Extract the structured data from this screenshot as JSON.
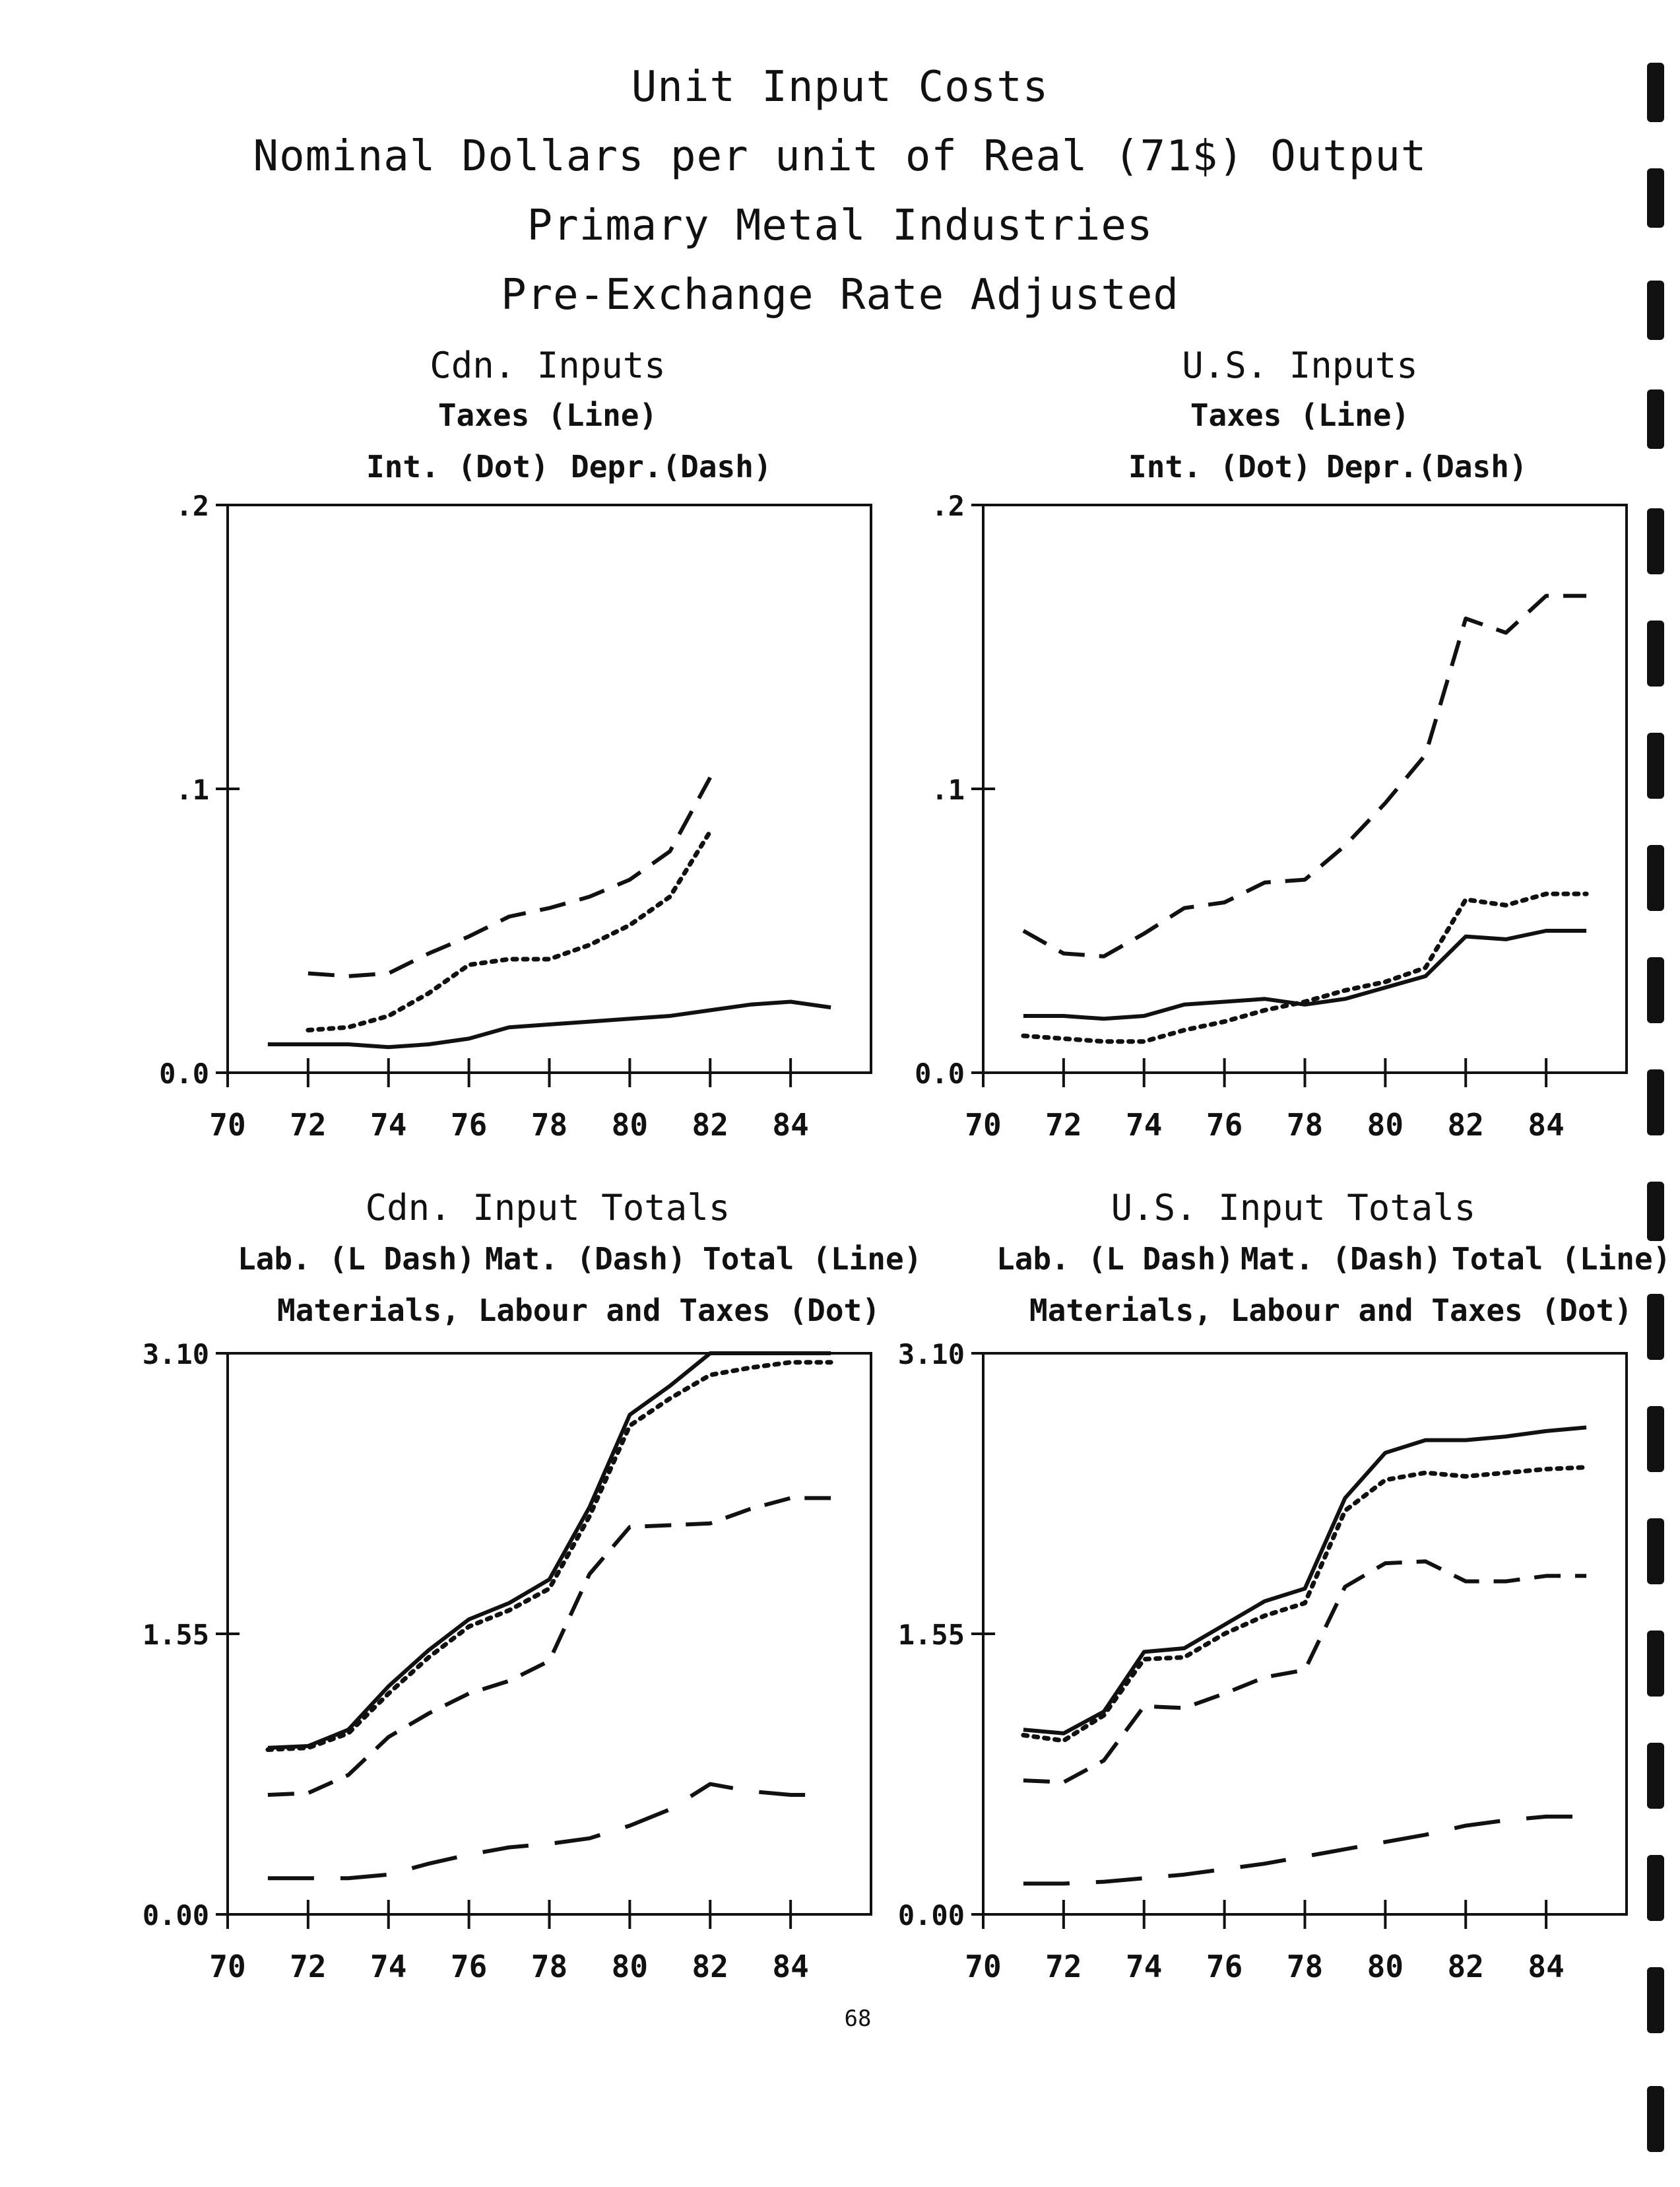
{
  "page": {
    "title_lines": [
      "Unit Input Costs",
      "Nominal Dollars per unit of Real (71$) Output",
      "Primary Metal Industries",
      "Pre-Exchange Rate Adjusted"
    ],
    "page_number": "68"
  },
  "chart_data": [
    {
      "type": "line",
      "title": "Cdn. Inputs",
      "subtitle": "Taxes (Line)",
      "legend_left": "Int. (Dot)",
      "legend_right": "Depr.(Dash)",
      "xlim": [
        70,
        86
      ],
      "ylim": [
        0,
        0.2
      ],
      "x_ticks": [
        70,
        72,
        74,
        76,
        78,
        80,
        82,
        84
      ],
      "y_ticks": [
        0,
        0.1,
        0.2
      ],
      "y_tick_labels": [
        "0.0",
        ".1",
        ".2"
      ],
      "series": [
        {
          "name": "Taxes",
          "style": "solid",
          "x": [
            71,
            72,
            73,
            74,
            75,
            76,
            77,
            78,
            79,
            80,
            81,
            82,
            83,
            84,
            85
          ],
          "y": [
            0.01,
            0.01,
            0.01,
            0.009,
            0.01,
            0.012,
            0.016,
            0.017,
            0.018,
            0.019,
            0.02,
            0.022,
            0.024,
            0.025,
            0.023
          ]
        },
        {
          "name": "Int.",
          "style": "dot",
          "x": [
            72,
            73,
            74,
            75,
            76,
            77,
            78,
            79,
            80,
            81,
            82
          ],
          "y": [
            0.015,
            0.016,
            0.02,
            0.028,
            0.038,
            0.04,
            0.04,
            0.045,
            0.052,
            0.062,
            0.085
          ]
        },
        {
          "name": "Depr.",
          "style": "dash",
          "x": [
            72,
            73,
            74,
            75,
            76,
            77,
            78,
            79,
            80,
            81,
            82
          ],
          "y": [
            0.035,
            0.034,
            0.035,
            0.042,
            0.048,
            0.055,
            0.058,
            0.062,
            0.068,
            0.078,
            0.104
          ]
        }
      ]
    },
    {
      "type": "line",
      "title": "U.S. Inputs",
      "subtitle": "Taxes (Line)",
      "legend_left": "Int. (Dot)",
      "legend_right": "Depr.(Dash)",
      "xlim": [
        70,
        86
      ],
      "ylim": [
        0,
        0.2
      ],
      "x_ticks": [
        70,
        72,
        74,
        76,
        78,
        80,
        82,
        84
      ],
      "y_ticks": [
        0,
        0.1,
        0.2
      ],
      "y_tick_labels": [
        "0.0",
        ".1",
        ".2"
      ],
      "series": [
        {
          "name": "Taxes",
          "style": "solid",
          "x": [
            71,
            72,
            73,
            74,
            75,
            76,
            77,
            78,
            79,
            80,
            81,
            82,
            83,
            84,
            85
          ],
          "y": [
            0.02,
            0.02,
            0.019,
            0.02,
            0.024,
            0.025,
            0.026,
            0.024,
            0.026,
            0.03,
            0.034,
            0.048,
            0.047,
            0.05,
            0.05
          ]
        },
        {
          "name": "Int.",
          "style": "dot",
          "x": [
            71,
            72,
            73,
            74,
            75,
            76,
            77,
            78,
            79,
            80,
            81,
            82,
            83,
            84,
            85
          ],
          "y": [
            0.013,
            0.012,
            0.011,
            0.011,
            0.015,
            0.018,
            0.022,
            0.025,
            0.029,
            0.032,
            0.037,
            0.061,
            0.059,
            0.063,
            0.063
          ]
        },
        {
          "name": "Depr.",
          "style": "dash",
          "x": [
            71,
            72,
            73,
            74,
            75,
            76,
            77,
            78,
            79,
            80,
            81,
            82,
            83,
            84,
            85
          ],
          "y": [
            0.05,
            0.042,
            0.041,
            0.049,
            0.058,
            0.06,
            0.067,
            0.068,
            0.08,
            0.095,
            0.112,
            0.16,
            0.155,
            0.168,
            0.168
          ]
        }
      ]
    },
    {
      "type": "line",
      "title": "Cdn. Input Totals",
      "legend_items": [
        "Lab. (L Dash)",
        "Mat. (Dash)",
        "Total (Line)"
      ],
      "subtitle": "Materials, Labour and Taxes (Dot)",
      "xlim": [
        70,
        86
      ],
      "ylim": [
        0,
        3.1
      ],
      "x_ticks": [
        70,
        72,
        74,
        76,
        78,
        80,
        82,
        84
      ],
      "y_ticks": [
        0,
        1.55,
        3.1
      ],
      "y_tick_labels": [
        "0.00",
        "1.55",
        "3.10"
      ],
      "series": [
        {
          "name": "Total",
          "style": "solid",
          "x": [
            71,
            72,
            73,
            74,
            75,
            76,
            77,
            78,
            79,
            80,
            81,
            82,
            83,
            84,
            85
          ],
          "y": [
            0.92,
            0.93,
            1.02,
            1.26,
            1.46,
            1.63,
            1.72,
            1.85,
            2.25,
            2.76,
            2.92,
            3.1,
            3.1,
            3.1,
            3.1
          ]
        },
        {
          "name": "Materials, Labour and Taxes",
          "style": "dot",
          "x": [
            71,
            72,
            73,
            74,
            75,
            76,
            77,
            78,
            79,
            80,
            81,
            82,
            83,
            84,
            85
          ],
          "y": [
            0.91,
            0.92,
            1.0,
            1.22,
            1.42,
            1.59,
            1.68,
            1.8,
            2.2,
            2.7,
            2.85,
            2.98,
            3.02,
            3.05,
            3.05
          ]
        },
        {
          "name": "Mat.",
          "style": "dash",
          "x": [
            71,
            72,
            73,
            74,
            75,
            76,
            77,
            78,
            79,
            80,
            81,
            82,
            83,
            84,
            85
          ],
          "y": [
            0.66,
            0.67,
            0.77,
            0.98,
            1.11,
            1.22,
            1.29,
            1.4,
            1.88,
            2.14,
            2.15,
            2.16,
            2.24,
            2.3,
            2.3
          ]
        },
        {
          "name": "Lab.",
          "style": "longdash",
          "x": [
            71,
            72,
            73,
            74,
            75,
            76,
            77,
            78,
            79,
            80,
            81,
            82,
            83,
            84,
            85
          ],
          "y": [
            0.2,
            0.2,
            0.2,
            0.22,
            0.28,
            0.33,
            0.37,
            0.39,
            0.42,
            0.49,
            0.58,
            0.72,
            0.68,
            0.66,
            0.66
          ]
        }
      ]
    },
    {
      "type": "line",
      "title": "U.S. Input Totals",
      "legend_items": [
        "Lab. (L Dash)",
        "Mat. (Dash)",
        "Total (Line)"
      ],
      "subtitle": "Materials, Labour and Taxes (Dot)",
      "xlim": [
        70,
        86
      ],
      "ylim": [
        0,
        3.1
      ],
      "x_ticks": [
        70,
        72,
        74,
        76,
        78,
        80,
        82,
        84
      ],
      "y_ticks": [
        0,
        1.55,
        3.1
      ],
      "y_tick_labels": [
        "0.00",
        "1.55",
        "3.10"
      ],
      "series": [
        {
          "name": "Total",
          "style": "solid",
          "x": [
            71,
            72,
            73,
            74,
            75,
            76,
            77,
            78,
            79,
            80,
            81,
            82,
            83,
            84,
            85
          ],
          "y": [
            1.02,
            1.0,
            1.12,
            1.45,
            1.47,
            1.6,
            1.73,
            1.8,
            2.3,
            2.55,
            2.62,
            2.62,
            2.64,
            2.67,
            2.69
          ]
        },
        {
          "name": "Materials, Labour and Taxes",
          "style": "dot",
          "x": [
            71,
            72,
            73,
            74,
            75,
            76,
            77,
            78,
            79,
            80,
            81,
            82,
            83,
            84,
            85
          ],
          "y": [
            0.99,
            0.96,
            1.1,
            1.41,
            1.42,
            1.55,
            1.65,
            1.72,
            2.23,
            2.4,
            2.44,
            2.42,
            2.44,
            2.46,
            2.47
          ]
        },
        {
          "name": "Mat.",
          "style": "dash",
          "x": [
            71,
            72,
            73,
            74,
            75,
            76,
            77,
            78,
            79,
            80,
            81,
            82,
            83,
            84,
            85
          ],
          "y": [
            0.74,
            0.73,
            0.85,
            1.15,
            1.14,
            1.22,
            1.31,
            1.35,
            1.81,
            1.94,
            1.95,
            1.84,
            1.84,
            1.87,
            1.87
          ]
        },
        {
          "name": "Lab.",
          "style": "longdash",
          "x": [
            71,
            72,
            73,
            74,
            75,
            76,
            77,
            78,
            79,
            80,
            81,
            82,
            83,
            84,
            85
          ],
          "y": [
            0.17,
            0.17,
            0.18,
            0.2,
            0.22,
            0.25,
            0.28,
            0.32,
            0.36,
            0.4,
            0.44,
            0.49,
            0.52,
            0.54,
            0.54
          ]
        }
      ]
    }
  ]
}
